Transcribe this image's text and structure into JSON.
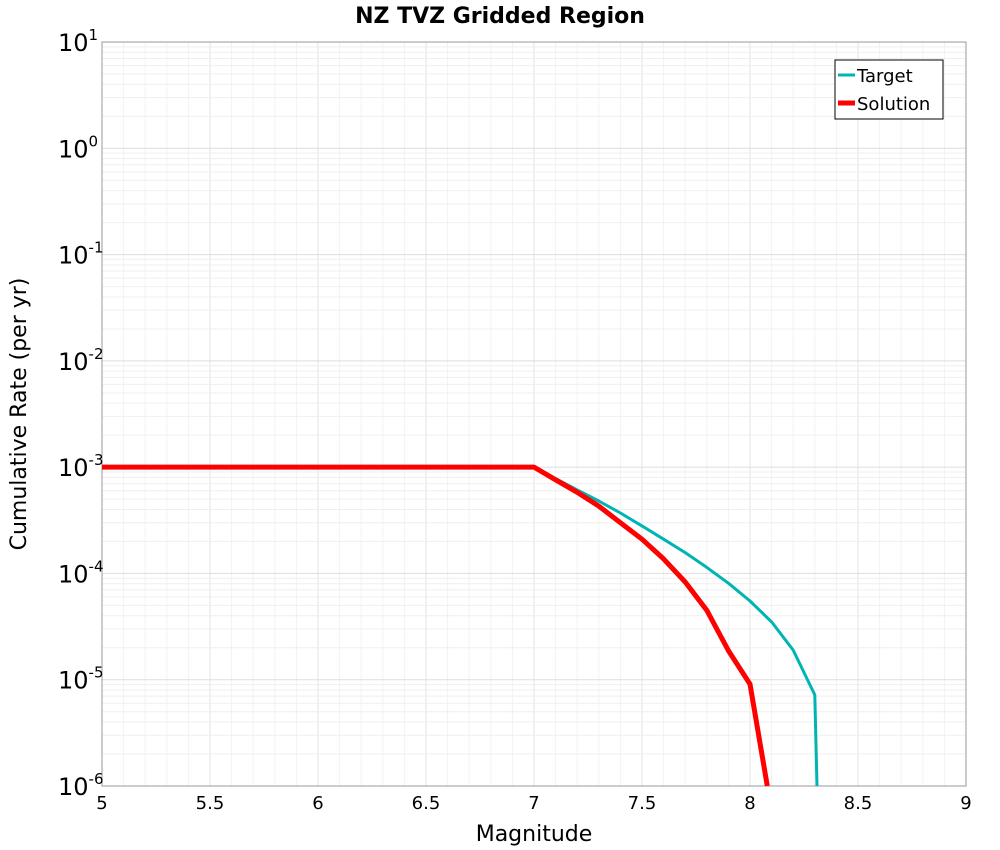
{
  "chart_data": {
    "type": "line",
    "title": "NZ TVZ Gridded Region",
    "xlabel": "Magnitude",
    "ylabel": "Cumulative Rate (per yr)",
    "xlim": [
      5,
      9
    ],
    "ylim": [
      1e-06,
      10
    ],
    "yscale": "log",
    "grid": true,
    "legend_position": "top-right",
    "x_ticks": [
      {
        "value": 5,
        "label": "5"
      },
      {
        "value": 5.5,
        "label": "5.5"
      },
      {
        "value": 6,
        "label": "6"
      },
      {
        "value": 6.5,
        "label": "6.5"
      },
      {
        "value": 7,
        "label": "7"
      },
      {
        "value": 7.5,
        "label": "7.5"
      },
      {
        "value": 8,
        "label": "8"
      },
      {
        "value": 8.5,
        "label": "8.5"
      },
      {
        "value": 9,
        "label": "9"
      }
    ],
    "y_ticks": [
      {
        "exp": 1,
        "base": "10",
        "sup": "1"
      },
      {
        "exp": 0,
        "base": "10",
        "sup": "0"
      },
      {
        "exp": -1,
        "base": "10",
        "sup": "-1"
      },
      {
        "exp": -2,
        "base": "10",
        "sup": "-2"
      },
      {
        "exp": -3,
        "base": "10",
        "sup": "-3"
      },
      {
        "exp": -4,
        "base": "10",
        "sup": "-4"
      },
      {
        "exp": -5,
        "base": "10",
        "sup": "-5"
      },
      {
        "exp": -6,
        "base": "10",
        "sup": "-6"
      }
    ],
    "series": [
      {
        "name": "Target",
        "color": "#00b4b4",
        "x": [
          5.0,
          7.0,
          7.1,
          7.2,
          7.3,
          7.4,
          7.5,
          7.6,
          7.7,
          7.8,
          7.9,
          8.0,
          8.1,
          8.2,
          8.3,
          8.31
        ],
        "y": [
          0.001,
          0.001,
          0.00078,
          0.00061,
          0.00048,
          0.00037,
          0.00028,
          0.00021,
          0.000157,
          0.000114,
          8.1e-05,
          5.5e-05,
          3.5e-05,
          1.9e-05,
          7.2e-06,
          1e-06
        ]
      },
      {
        "name": "Solution",
        "color": "#ff0000",
        "x": [
          5.0,
          7.0,
          7.1,
          7.2,
          7.3,
          7.4,
          7.5,
          7.6,
          7.7,
          7.8,
          7.9,
          8.0,
          8.08
        ],
        "y": [
          0.001,
          0.001,
          0.00076,
          0.00058,
          0.00043,
          0.0003,
          0.00021,
          0.000137,
          8.3e-05,
          4.5e-05,
          1.88e-05,
          9.1e-06,
          1e-06
        ]
      }
    ]
  }
}
